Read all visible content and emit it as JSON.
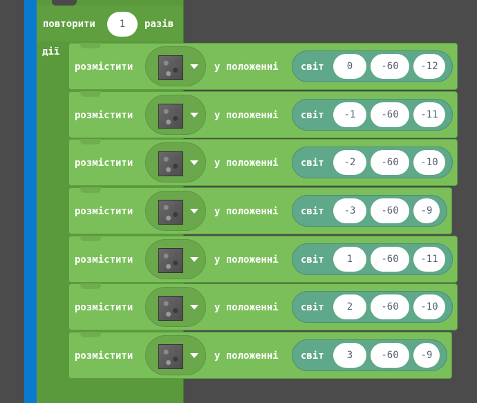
{
  "loop": {
    "repeat_label": "повторити",
    "count": "1",
    "times_label": "разів",
    "do_label": "дії"
  },
  "actions": [
    {
      "place_label": "розмістити",
      "block_icon": "cobblestone-block-icon",
      "at_label": "у положенні",
      "world_label": "світ",
      "x": "0",
      "y": "-60",
      "z": "-12"
    },
    {
      "place_label": "розмістити",
      "block_icon": "cobblestone-block-icon",
      "at_label": "у положенні",
      "world_label": "світ",
      "x": "-1",
      "y": "-60",
      "z": "-11"
    },
    {
      "place_label": "розмістити",
      "block_icon": "cobblestone-block-icon",
      "at_label": "у положенні",
      "world_label": "світ",
      "x": "-2",
      "y": "-60",
      "z": "-10"
    },
    {
      "place_label": "розмістити",
      "block_icon": "cobblestone-block-icon",
      "at_label": "у положенні",
      "world_label": "світ",
      "x": "-3",
      "y": "-60",
      "z": "-9"
    },
    {
      "place_label": "розмістити",
      "block_icon": "cobblestone-block-icon",
      "at_label": "у положенні",
      "world_label": "світ",
      "x": "1",
      "y": "-60",
      "z": "-11"
    },
    {
      "place_label": "розмістити",
      "block_icon": "cobblestone-block-icon",
      "at_label": "у положенні",
      "world_label": "світ",
      "x": "2",
      "y": "-60",
      "z": "-10"
    },
    {
      "place_label": "розмістити",
      "block_icon": "cobblestone-block-icon",
      "at_label": "у положенні",
      "world_label": "світ",
      "x": "3",
      "y": "-60",
      "z": "-9"
    }
  ],
  "colors": {
    "loop_green": "#5a9a3c",
    "action_green": "#7bbf5a",
    "world_teal": "#5fa88a",
    "category_blue": "#0a7ad1",
    "workspace_bg": "#4a4a4a"
  }
}
